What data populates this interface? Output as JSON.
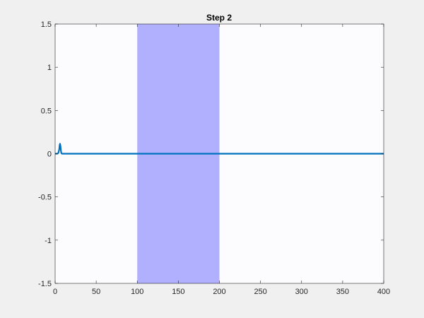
{
  "chart_data": {
    "type": "line",
    "title": "Step 2",
    "xlabel": "",
    "ylabel": "",
    "xlim": [
      0,
      400
    ],
    "ylim": [
      -1.5,
      1.5
    ],
    "grid": false,
    "legend": "none",
    "x_ticks": [
      0,
      50,
      100,
      150,
      200,
      250,
      300,
      350,
      400
    ],
    "y_ticks": [
      -1.5,
      -1,
      -0.5,
      0,
      0.5,
      1,
      1.5
    ],
    "x_tick_labels": [
      "0",
      "50",
      "100",
      "150",
      "200",
      "250",
      "300",
      "350",
      "400"
    ],
    "y_tick_labels": [
      "-1.5",
      "-1",
      "-0.5",
      "0",
      "0.5",
      "1",
      "1.5"
    ],
    "shaded_region": {
      "x_start": 100,
      "x_end": 200,
      "color": "#b0b0ff"
    },
    "series": [
      {
        "color": "#0072bd",
        "x": [
          0,
          1,
          2,
          3,
          4,
          5,
          5.5,
          6,
          6.5,
          7,
          7.5,
          8,
          9,
          10,
          20,
          50,
          100,
          150,
          200,
          250,
          300,
          350,
          400
        ],
        "y": [
          0,
          0,
          0,
          0.002,
          0.01,
          0.05,
          0.1,
          0.115,
          0.09,
          0.04,
          0.01,
          0.002,
          0,
          0,
          0,
          0,
          0,
          0,
          0,
          0,
          0,
          0,
          0
        ]
      }
    ]
  },
  "colors": {
    "figure_background": "#f0f0f0",
    "axes_background": "#fcfbfe",
    "axis_color": "#262626",
    "line_color": "#0072bd",
    "shade_color": "#b0b0ff"
  }
}
